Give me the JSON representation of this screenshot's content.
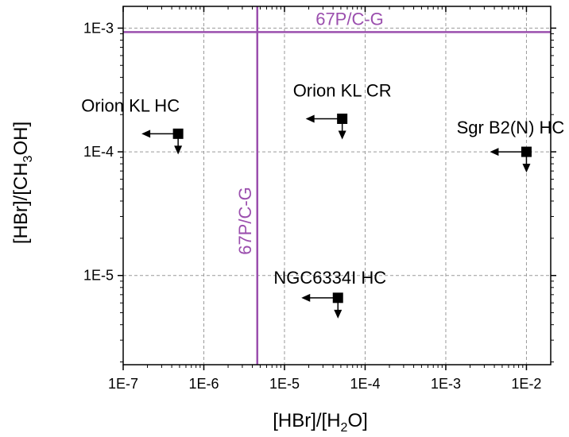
{
  "chart_data": {
    "type": "scatter",
    "xlabel_main": "[HBr]/[H",
    "xlabel_sub": "2",
    "xlabel_end": "O]",
    "ylabel_main": "[HBr]/[CH",
    "ylabel_sub": "3",
    "ylabel_end": "OH]",
    "x_scale": "log",
    "y_scale": "log",
    "xlim": [
      1e-07,
      0.02
    ],
    "ylim": [
      1.9e-06,
      0.0015
    ],
    "x_ticks": [
      {
        "value": 1e-07,
        "label": "1E-7"
      },
      {
        "value": 1e-06,
        "label": "1E-6"
      },
      {
        "value": 1e-05,
        "label": "1E-5"
      },
      {
        "value": 0.0001,
        "label": "1E-4"
      },
      {
        "value": 0.001,
        "label": "1E-3"
      },
      {
        "value": 0.01,
        "label": "1E-2"
      }
    ],
    "y_ticks": [
      {
        "value": 1e-05,
        "label": "1E-5"
      },
      {
        "value": 0.0001,
        "label": "1E-4"
      },
      {
        "value": 0.001,
        "label": "1E-3"
      }
    ],
    "grid": true,
    "points": [
      {
        "label": "Orion KL HC",
        "x": 4.8e-07,
        "y": 0.00014,
        "upper_limit_x": true,
        "upper_limit_y": true
      },
      {
        "label": "Orion KL CR",
        "x": 5.2e-05,
        "y": 0.000185,
        "upper_limit_x": true,
        "upper_limit_y": true
      },
      {
        "label": "Sgr B2(N) HC",
        "x": 0.01,
        "y": 0.0001,
        "upper_limit_x": true,
        "upper_limit_y": true
      },
      {
        "label": "NGC6334I HC",
        "x": 4.6e-05,
        "y": 6.6e-06,
        "upper_limit_x": true,
        "upper_limit_y": true
      }
    ],
    "reference_lines": [
      {
        "orientation": "horizontal",
        "value": 0.00093,
        "label": "67P/C-G"
      },
      {
        "orientation": "vertical",
        "value": 4.6e-06,
        "label": "67P/C-G"
      }
    ],
    "colors": {
      "reference": "#9b4fae",
      "marker": "#000000",
      "grid": "#9a9a9a"
    }
  }
}
